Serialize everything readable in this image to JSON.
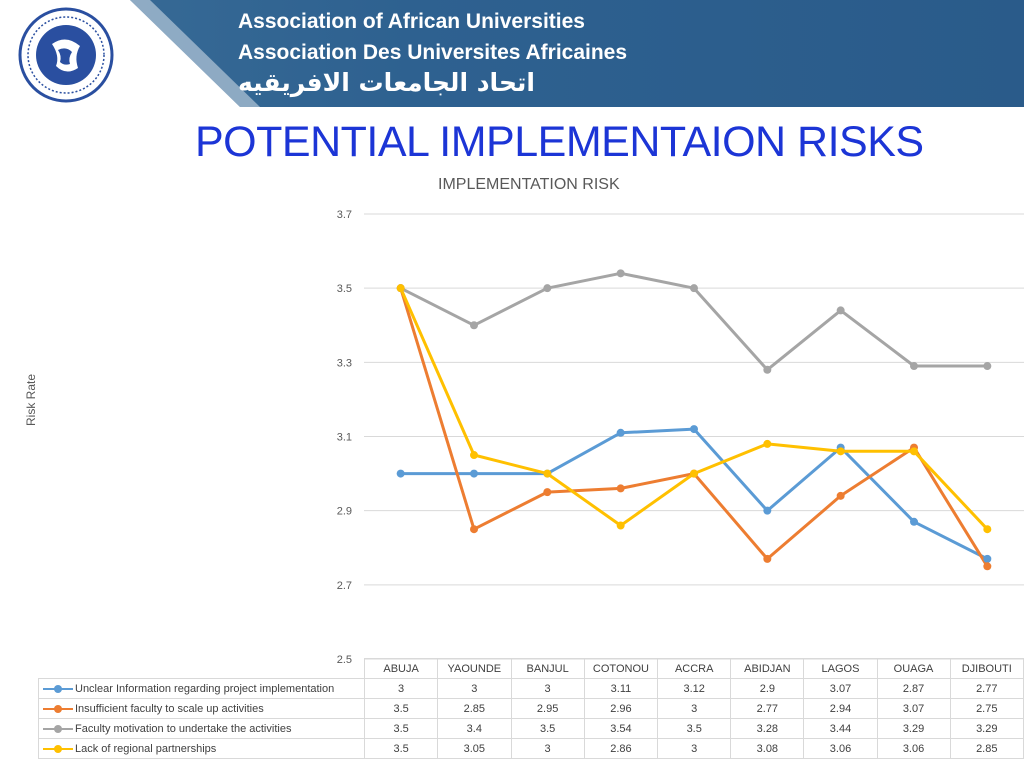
{
  "header": {
    "org_en": "Association of African Universities",
    "org_fr": "Association Des Universites Africaines",
    "org_ar": "اتحاد الجامعات الافريقيه",
    "logo_icon": "aau-logo-icon"
  },
  "slide": {
    "title": "POTENTIAL IMPLEMENTAION RISKS"
  },
  "colors": {
    "title": "#1c35d6",
    "banner": "#2e6190",
    "grid": "#d9d9d9"
  },
  "chart_data": {
    "type": "line",
    "title": "IMPLEMENTATION RISK",
    "xlabel": "",
    "ylabel": "Risk Rate",
    "ylim": [
      2.5,
      3.7
    ],
    "yticks": [
      "3.7",
      "3.5",
      "3.3",
      "3.1",
      "2.9",
      "2.7",
      "2.5"
    ],
    "grid": true,
    "legend": "data-table",
    "categories": [
      "ABUJA",
      "YAOUNDE",
      "BANJUL",
      "COTONOU",
      "ACCRA",
      "ABIDJAN",
      "LAGOS",
      "OUAGA",
      "DJIBOUTI"
    ],
    "series": [
      {
        "name": "Unclear Information regarding project implementation",
        "color": "#5b9bd5",
        "values": [
          3,
          3,
          3,
          3.11,
          3.12,
          2.9,
          3.07,
          2.87,
          2.77
        ],
        "labels": [
          "3",
          "3",
          "3",
          "3.11",
          "3.12",
          "2.9",
          "3.07",
          "2.87",
          "2.77"
        ]
      },
      {
        "name": "Insufficient faculty to scale up activities",
        "color": "#ed7d31",
        "values": [
          3.5,
          2.85,
          2.95,
          2.96,
          3,
          2.77,
          2.94,
          3.07,
          2.75
        ],
        "labels": [
          "3.5",
          "2.85",
          "2.95",
          "2.96",
          "3",
          "2.77",
          "2.94",
          "3.07",
          "2.75"
        ]
      },
      {
        "name": "Faculty motivation to undertake the activities",
        "color": "#a5a5a5",
        "values": [
          3.5,
          3.4,
          3.5,
          3.54,
          3.5,
          3.28,
          3.44,
          3.29,
          3.29
        ],
        "labels": [
          "3.5",
          "3.4",
          "3.5",
          "3.54",
          "3.5",
          "3.28",
          "3.44",
          "3.29",
          "3.29"
        ]
      },
      {
        "name": "Lack of regional partnerships",
        "color": "#ffc000",
        "values": [
          3.5,
          3.05,
          3,
          2.86,
          3,
          3.08,
          3.06,
          3.06,
          2.85
        ],
        "labels": [
          "3.5",
          "3.05",
          "3",
          "2.86",
          "3",
          "3.08",
          "3.06",
          "3.06",
          "2.85"
        ]
      }
    ]
  }
}
